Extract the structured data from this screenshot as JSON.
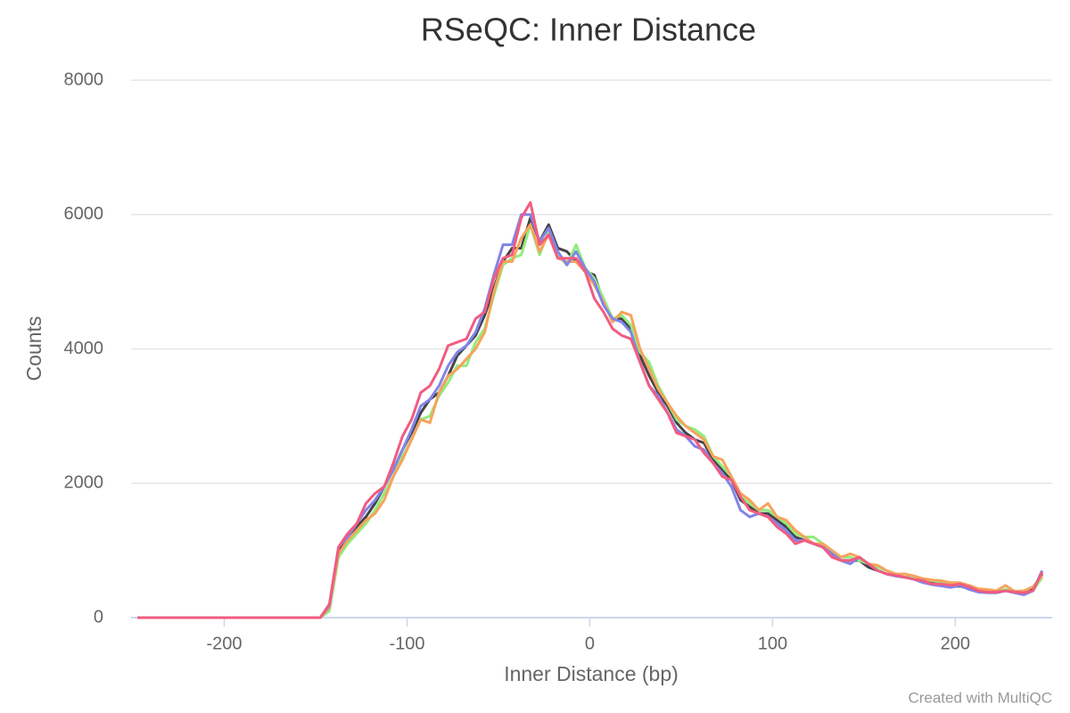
{
  "chart_data": {
    "type": "line",
    "title": "RSeQC: Inner Distance",
    "x_label": "Inner Distance (bp)",
    "y_label": "Counts",
    "credit": "Created with MultiQC",
    "x": [
      -247.5,
      -242.5,
      -237.5,
      -232.5,
      -227.5,
      -222.5,
      -217.5,
      -212.5,
      -207.5,
      -202.5,
      -197.5,
      -192.5,
      -187.5,
      -182.5,
      -177.5,
      -172.5,
      -167.5,
      -162.5,
      -157.5,
      -152.5,
      -147.5,
      -142.5,
      -137.5,
      -132.5,
      -127.5,
      -122.5,
      -117.5,
      -112.5,
      -107.5,
      -102.5,
      -97.5,
      -92.5,
      -87.5,
      -82.5,
      -77.5,
      -72.5,
      -67.5,
      -62.5,
      -57.5,
      -52.5,
      -47.5,
      -42.5,
      -37.5,
      -32.5,
      -27.5,
      -22.5,
      -17.5,
      -12.5,
      -7.5,
      -2.5,
      2.5,
      7.5,
      12.5,
      17.5,
      22.5,
      27.5,
      32.5,
      37.5,
      42.5,
      47.5,
      52.5,
      57.5,
      62.5,
      67.5,
      72.5,
      77.5,
      82.5,
      87.5,
      92.5,
      97.5,
      102.5,
      107.5,
      112.5,
      117.5,
      122.5,
      127.5,
      132.5,
      137.5,
      142.5,
      147.5,
      152.5,
      157.5,
      162.5,
      167.5,
      172.5,
      177.5,
      182.5,
      187.5,
      192.5,
      197.5,
      202.5,
      207.5,
      212.5,
      217.5,
      222.5,
      227.5,
      232.5,
      237.5,
      242.5,
      247.5
    ],
    "series": [
      {
        "color": "#434348",
        "values": [
          0,
          0,
          0,
          0,
          0,
          0,
          0,
          0,
          0,
          0,
          0,
          0,
          0,
          0,
          0,
          0,
          0,
          0,
          0,
          0,
          0,
          150,
          1000,
          1200,
          1350,
          1500,
          1700,
          1950,
          2200,
          2500,
          2750,
          3050,
          3250,
          3350,
          3600,
          3900,
          4050,
          4200,
          4500,
          4900,
          5300,
          5500,
          5500,
          5950,
          5600,
          5850,
          5500,
          5450,
          5300,
          5150,
          5100,
          4700,
          4450,
          4450,
          4300,
          3900,
          3600,
          3350,
          3150,
          2900,
          2750,
          2650,
          2600,
          2350,
          2200,
          2050,
          1750,
          1650,
          1550,
          1550,
          1450,
          1350,
          1200,
          1150,
          1100,
          1050,
          950,
          850,
          850,
          850,
          750,
          700,
          650,
          620,
          600,
          580,
          550,
          520,
          480,
          460,
          470,
          430,
          400,
          380,
          380,
          400,
          380,
          360,
          420,
          650
        ]
      },
      {
        "color": "#90ed7d",
        "values": [
          0,
          0,
          0,
          0,
          0,
          0,
          0,
          0,
          0,
          0,
          0,
          0,
          0,
          0,
          0,
          0,
          0,
          0,
          0,
          0,
          0,
          100,
          900,
          1100,
          1250,
          1400,
          1600,
          1850,
          2100,
          2400,
          2650,
          2950,
          3000,
          3300,
          3500,
          3750,
          3750,
          4100,
          4300,
          4800,
          5250,
          5350,
          5400,
          5850,
          5400,
          5750,
          5400,
          5250,
          5550,
          5200,
          5050,
          4750,
          4450,
          4500,
          4350,
          3950,
          3800,
          3450,
          3200,
          2950,
          2850,
          2800,
          2700,
          2400,
          2250,
          2100,
          1800,
          1700,
          1600,
          1600,
          1500,
          1400,
          1250,
          1200,
          1200,
          1100,
          1000,
          900,
          900,
          850,
          800,
          750,
          700,
          650,
          650,
          600,
          570,
          550,
          520,
          480,
          480,
          450,
          410,
          390,
          380,
          420,
          400,
          370,
          400,
          600
        ]
      },
      {
        "color": "#f7a35c",
        "values": [
          0,
          0,
          0,
          0,
          0,
          0,
          0,
          0,
          0,
          0,
          0,
          0,
          0,
          0,
          0,
          0,
          0,
          0,
          0,
          0,
          0,
          150,
          950,
          1150,
          1300,
          1450,
          1550,
          1750,
          2100,
          2350,
          2650,
          2950,
          2900,
          3350,
          3600,
          3700,
          3850,
          4000,
          4250,
          4850,
          5300,
          5300,
          5650,
          5850,
          5450,
          5700,
          5350,
          5300,
          5300,
          5150,
          4950,
          4700,
          4400,
          4550,
          4500,
          4000,
          3700,
          3400,
          3200,
          3000,
          2850,
          2750,
          2650,
          2400,
          2350,
          2100,
          1850,
          1750,
          1600,
          1700,
          1500,
          1450,
          1300,
          1200,
          1100,
          1100,
          1000,
          900,
          950,
          900,
          800,
          780,
          700,
          650,
          650,
          620,
          580,
          560,
          550,
          520,
          520,
          480,
          430,
          420,
          400,
          480,
          390,
          400,
          460,
          620
        ]
      },
      {
        "color": "#8085e9",
        "values": [
          0,
          0,
          0,
          0,
          0,
          0,
          0,
          0,
          0,
          0,
          0,
          0,
          0,
          0,
          0,
          0,
          0,
          0,
          0,
          0,
          0,
          180,
          1050,
          1200,
          1400,
          1600,
          1750,
          1950,
          2200,
          2500,
          2800,
          3150,
          3250,
          3450,
          3750,
          3950,
          4050,
          4250,
          4600,
          5100,
          5550,
          5550,
          6000,
          6000,
          5600,
          5800,
          5450,
          5250,
          5450,
          5200,
          5000,
          4650,
          4450,
          4400,
          4250,
          3800,
          3450,
          3300,
          3050,
          2800,
          2700,
          2550,
          2500,
          2300,
          2150,
          1950,
          1600,
          1500,
          1550,
          1500,
          1400,
          1300,
          1150,
          1150,
          1100,
          1050,
          950,
          850,
          800,
          900,
          800,
          700,
          650,
          620,
          600,
          570,
          520,
          490,
          470,
          450,
          480,
          420,
          380,
          370,
          370,
          400,
          370,
          340,
          400,
          700
        ]
      },
      {
        "color": "#f15c80",
        "values": [
          0,
          0,
          0,
          0,
          0,
          0,
          0,
          0,
          0,
          0,
          0,
          0,
          0,
          0,
          0,
          0,
          0,
          0,
          0,
          0,
          0,
          200,
          1050,
          1250,
          1400,
          1700,
          1850,
          1950,
          2300,
          2700,
          2950,
          3350,
          3450,
          3700,
          4050,
          4100,
          4150,
          4450,
          4550,
          5050,
          5350,
          5400,
          5950,
          6180,
          5550,
          5700,
          5350,
          5350,
          5350,
          5150,
          4750,
          4550,
          4300,
          4200,
          4150,
          3800,
          3450,
          3250,
          3050,
          2750,
          2700,
          2650,
          2450,
          2300,
          2100,
          2050,
          1800,
          1600,
          1550,
          1500,
          1350,
          1250,
          1100,
          1150,
          1100,
          1050,
          900,
          850,
          850,
          900,
          800,
          700,
          650,
          630,
          600,
          570,
          550,
          500,
          500,
          480,
          500,
          460,
          400,
          380,
          380,
          400,
          380,
          370,
          400,
          680
        ]
      }
    ],
    "xlim": [
      -251,
      253
    ],
    "xticks": [
      -200,
      -100,
      0,
      100,
      200
    ],
    "ylim": [
      0,
      8000
    ],
    "yticks": [
      0,
      2000,
      4000,
      6000,
      8000
    ],
    "grid": true
  }
}
